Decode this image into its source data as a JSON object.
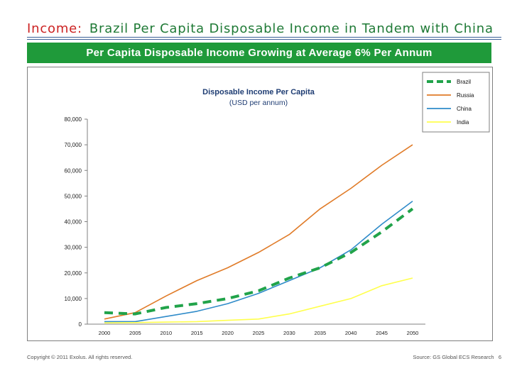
{
  "header": {
    "prefix": "Income:",
    "title": "Brazil Per Capita Disposable Income in Tandem with China"
  },
  "banner": {
    "text": "Per Capita Disposable Income Growing at Average 6% Per Annum"
  },
  "footer": {
    "copyright": "Copyright © 2011 Exolus. All rights reserved.",
    "source": "Source: GS Global ECS Research",
    "page": "6"
  },
  "chart_data": {
    "type": "line",
    "title": "Disposable Income Per Capita",
    "subtitle": "(USD per annum)",
    "categories": [
      "2000",
      "2005",
      "2010",
      "2015",
      "2020",
      "2025",
      "2030",
      "2035",
      "2040",
      "2045",
      "2050"
    ],
    "ylim": [
      0,
      80000
    ],
    "yticks": [
      0,
      10000,
      20000,
      30000,
      40000,
      50000,
      60000,
      70000,
      80000
    ],
    "ytick_labels": [
      "0",
      "10,000",
      "20,000",
      "30,000",
      "40,000",
      "50,000",
      "60,000",
      "70,000",
      "80,000"
    ],
    "legend_position": "top-right",
    "grid": false,
    "series": [
      {
        "name": "Brazil",
        "color": "#21a34a",
        "dashed": true,
        "values": [
          4500,
          4000,
          6500,
          8000,
          10000,
          13000,
          18000,
          22000,
          28000,
          36000,
          45000
        ]
      },
      {
        "name": "Russia",
        "color": "#e07b28",
        "dashed": false,
        "values": [
          2000,
          4500,
          11000,
          17000,
          22000,
          28000,
          35000,
          45000,
          53000,
          62000,
          70000
        ]
      },
      {
        "name": "China",
        "color": "#2f8bc9",
        "dashed": false,
        "values": [
          1000,
          1000,
          3000,
          5000,
          8000,
          12000,
          17000,
          22000,
          29000,
          39000,
          48000
        ]
      },
      {
        "name": "India",
        "color": "#ffff4d",
        "dashed": false,
        "values": [
          500,
          600,
          800,
          1000,
          1500,
          2000,
          4000,
          7000,
          10000,
          15000,
          18000
        ]
      }
    ]
  }
}
